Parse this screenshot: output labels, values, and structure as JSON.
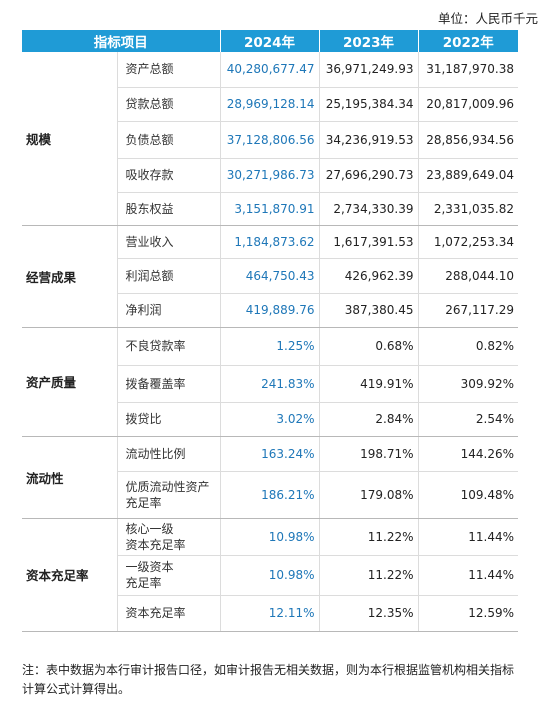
{
  "unit_label": "单位：人民币千元",
  "header": {
    "item": "指标项目",
    "y2024": "2024年",
    "y2023": "2023年",
    "y2022": "2022年"
  },
  "groups": [
    {
      "category": "规模",
      "rows": [
        {
          "item": "资产总额",
          "y2024": "40,280,677.47",
          "y2023": "36,971,249.93",
          "y2022": "31,187,970.38"
        },
        {
          "item": "贷款总额",
          "y2024": "28,969,128.14",
          "y2023": "25,195,384.34",
          "y2022": "20,817,009.96"
        },
        {
          "item": "负债总额",
          "y2024": "37,128,806.56",
          "y2023": "34,236,919.53",
          "y2022": "28,856,934.56"
        },
        {
          "item": "吸收存款",
          "y2024": "30,271,986.73",
          "y2023": "27,696,290.73",
          "y2022": "23,889,649.04"
        },
        {
          "item": "股东权益",
          "y2024": "3,151,870.91",
          "y2023": "2,734,330.39",
          "y2022": "2,331,035.82"
        }
      ]
    },
    {
      "category": "经营成果",
      "rows": [
        {
          "item": "营业收入",
          "y2024": "1,184,873.62",
          "y2023": "1,617,391.53",
          "y2022": "1,072,253.34"
        },
        {
          "item": "利润总额",
          "y2024": "464,750.43",
          "y2023": "426,962.39",
          "y2022": "288,044.10"
        },
        {
          "item": "净利润",
          "y2024": "419,889.76",
          "y2023": "387,380.45",
          "y2022": "267,117.29"
        }
      ]
    },
    {
      "category": "资产质量",
      "rows": [
        {
          "item": "不良贷款率",
          "y2024": "1.25%",
          "y2023": "0.68%",
          "y2022": "0.82%"
        },
        {
          "item": "拨备覆盖率",
          "y2024": "241.83%",
          "y2023": "419.91%",
          "y2022": "309.92%"
        },
        {
          "item": "拨贷比",
          "y2024": "3.02%",
          "y2023": "2.84%",
          "y2022": "2.54%"
        }
      ]
    },
    {
      "category": "流动性",
      "rows": [
        {
          "item": "流动性比例",
          "y2024": "163.24%",
          "y2023": "198.71%",
          "y2022": "144.26%"
        },
        {
          "item": "优质流动性资产\n充足率",
          "y2024": "186.21%",
          "y2023": "179.08%",
          "y2022": "109.48%"
        }
      ]
    },
    {
      "category": "资本充足率",
      "rows": [
        {
          "item": "核心一级\n资本充足率",
          "y2024": "10.98%",
          "y2023": "11.22%",
          "y2022": "11.44%"
        },
        {
          "item": "一级资本\n充足率",
          "y2024": "10.98%",
          "y2023": "11.22%",
          "y2022": "11.44%"
        },
        {
          "item": "资本充足率",
          "y2024": "12.11%",
          "y2023": "12.35%",
          "y2022": "12.59%"
        }
      ]
    }
  ],
  "note": "注：表中数据为本行审计报告口径，如审计报告无相关数据，则为本行根据监管机构相关指标计算公式计算得出。"
}
